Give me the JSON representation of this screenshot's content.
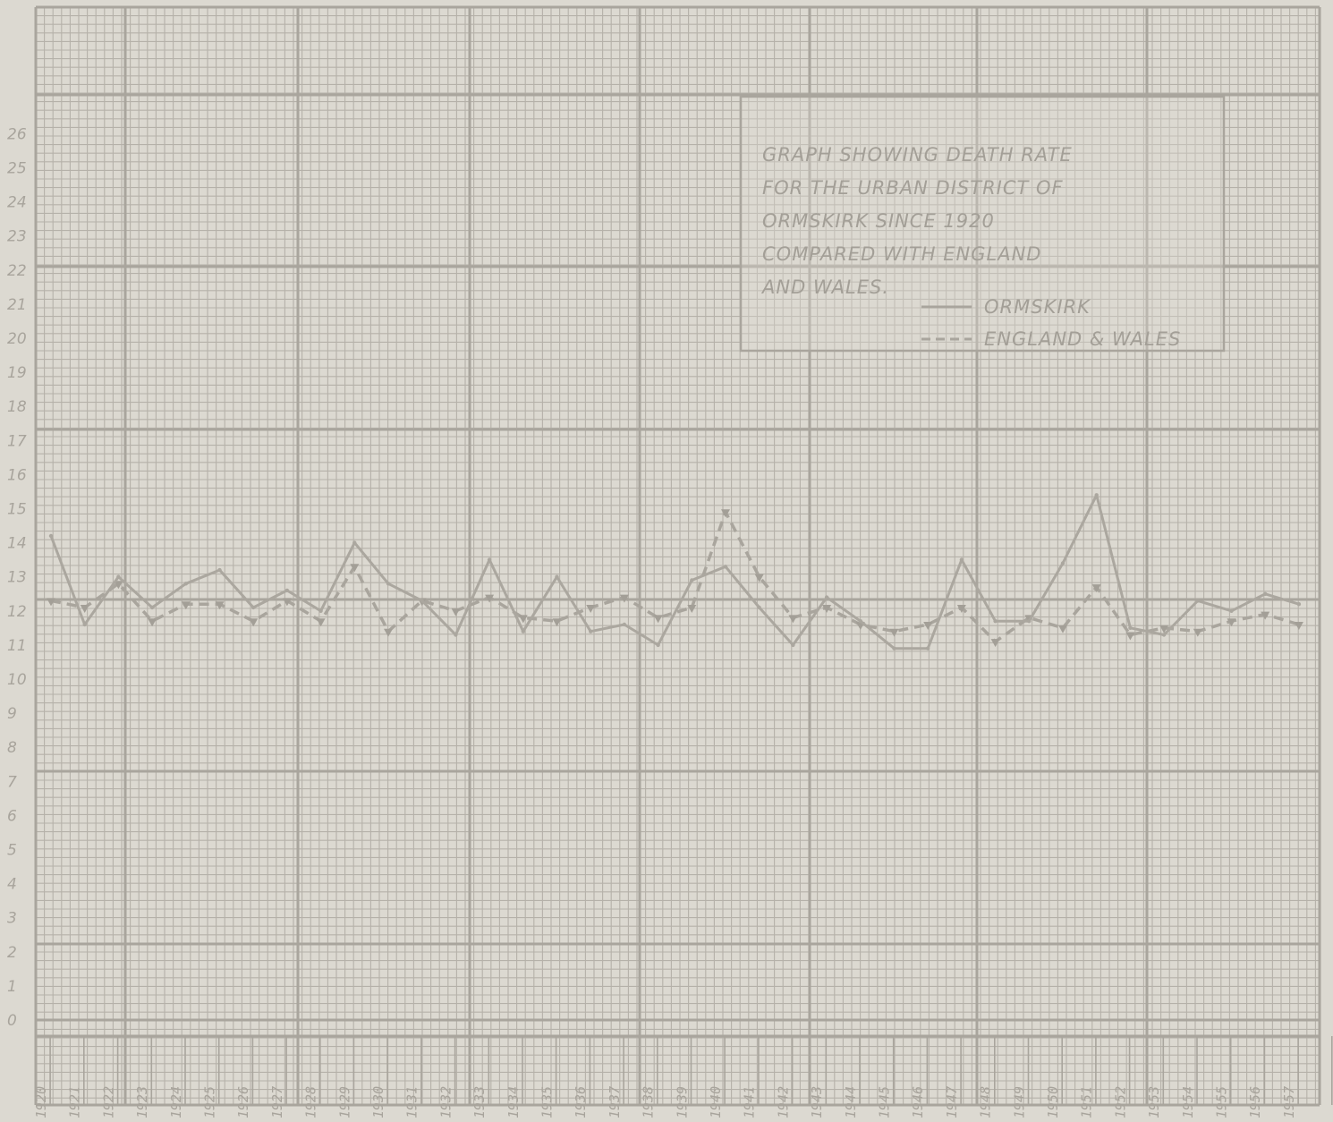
{
  "chart_data": {
    "type": "line",
    "title_lines": [
      "GRAPH SHOWING DEATH RATE",
      "FOR THE URBAN DISTRICT OF",
      "ORMSKIRK SINCE 1920",
      "COMPARED WITH ENGLAND",
      "AND WALES."
    ],
    "legend": [
      {
        "label": "ORMSKIRK",
        "style": "solid"
      },
      {
        "label": "ENGLAND & WALES",
        "style": "dashed"
      }
    ],
    "legend_placement": "top-right",
    "x": [
      "1920",
      "1921",
      "1922",
      "1923",
      "1924",
      "1925",
      "1926",
      "1927",
      "1928",
      "1929",
      "1930",
      "1931",
      "1932",
      "1933",
      "1934",
      "1935",
      "1936",
      "1937",
      "1938",
      "1939",
      "1940",
      "1941",
      "1942",
      "1943",
      "1944",
      "1945",
      "1946",
      "1947",
      "1948",
      "1949",
      "1950",
      "1951",
      "1952",
      "1953",
      "1954",
      "1955",
      "1956",
      "1957"
    ],
    "yticks": [
      "0",
      "1",
      "2",
      "3",
      "4",
      "5",
      "6",
      "7",
      "8",
      "9",
      "10",
      "11",
      "12",
      "13",
      "14",
      "15",
      "16",
      "17",
      "18",
      "19",
      "20",
      "21",
      "22",
      "23",
      "24",
      "25",
      "26"
    ],
    "ylim": [
      0,
      26
    ],
    "grid": true,
    "series": [
      {
        "name": "ORMSKIRK",
        "style": "solid",
        "values": [
          14.2,
          11.6,
          13.0,
          12.1,
          12.8,
          13.2,
          12.1,
          12.6,
          12.0,
          14.0,
          12.8,
          12.3,
          11.3,
          13.5,
          11.4,
          13.0,
          11.4,
          11.6,
          11.0,
          12.9,
          13.3,
          12.1,
          11.0,
          12.4,
          11.7,
          10.9,
          10.9,
          13.5,
          11.7,
          11.7,
          13.4,
          15.4,
          11.5,
          11.3,
          12.3,
          12.0,
          12.5,
          12.2
        ]
      },
      {
        "name": "ENGLAND & WALES",
        "style": "dashed",
        "values": [
          12.3,
          12.1,
          12.8,
          11.7,
          12.2,
          12.2,
          11.7,
          12.3,
          11.7,
          13.3,
          11.4,
          12.3,
          12.0,
          12.4,
          11.8,
          11.7,
          12.1,
          12.4,
          11.8,
          12.1,
          14.9,
          13.0,
          11.8,
          12.1,
          11.6,
          11.4,
          11.6,
          12.1,
          11.1,
          11.8,
          11.5,
          12.7,
          11.3,
          11.5,
          11.4,
          11.7,
          11.9,
          11.6
        ]
      }
    ]
  }
}
